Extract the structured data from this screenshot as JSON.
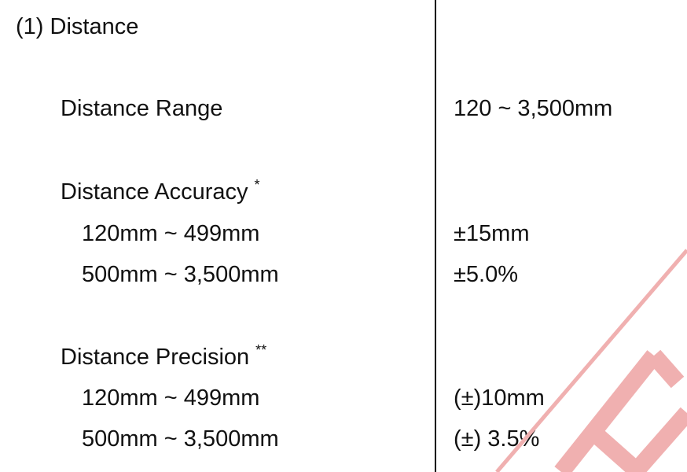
{
  "section": {
    "heading": "(1) Distance"
  },
  "range": {
    "label": "Distance Range",
    "value": "120 ~ 3,500mm"
  },
  "accuracy": {
    "label": "Distance Accuracy",
    "footnote_mark": "*",
    "rows": [
      {
        "range": "120mm ~ 499mm",
        "value": "±15mm"
      },
      {
        "range": "500mm ~ 3,500mm",
        "value": "±5.0%"
      }
    ]
  },
  "precision": {
    "label": "Distance Precision",
    "footnote_mark": "**",
    "rows": [
      {
        "range": "120mm ~ 499mm",
        "value": "(±)10mm"
      },
      {
        "range": "500mm ~ 3,500mm",
        "value": "(±) 3.5%"
      }
    ]
  },
  "watermark": {
    "color": "#f0b0b0"
  }
}
